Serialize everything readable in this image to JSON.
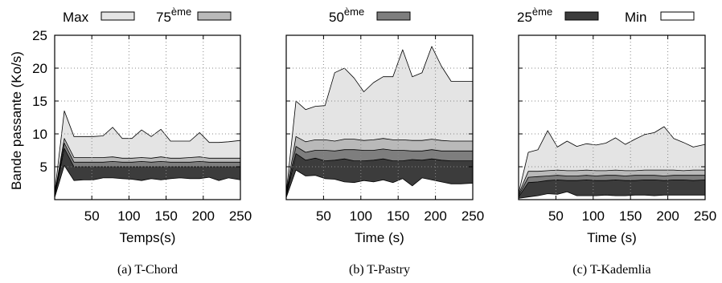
{
  "legend": {
    "items": [
      {
        "label": "Max",
        "sup": "",
        "fill": "#e4e4e4"
      },
      {
        "label": "75",
        "sup": "ème",
        "fill": "#b9b9b9"
      },
      {
        "label": "50",
        "sup": "ème",
        "fill": "#7e7e7e"
      },
      {
        "label": "25",
        "sup": "ème",
        "fill": "#3c3c3c"
      },
      {
        "label": "Min",
        "sup": "",
        "fill": "#ffffff"
      }
    ]
  },
  "colors": {
    "max_fill": "#e4e4e4",
    "p75_fill": "#b9b9b9",
    "p50_fill": "#7e7e7e",
    "p25_fill": "#3c3c3c",
    "min_fill": "#ffffff",
    "axis": "#000000",
    "grid": "#888888"
  },
  "chart_data": [
    {
      "type": "area",
      "caption": "(a) T-Chord",
      "xlabel": "Temps(s)",
      "ylabel": "Bande passante (Ko/s)",
      "xlim": [
        0,
        250
      ],
      "ylim": [
        0,
        25
      ],
      "xticks": [
        50,
        100,
        150,
        200,
        250
      ],
      "yticks": [
        5,
        10,
        15,
        20,
        25
      ],
      "grid": true,
      "x": [
        0,
        13,
        26,
        39,
        52,
        65,
        78,
        91,
        104,
        117,
        130,
        143,
        156,
        169,
        182,
        195,
        208,
        221,
        234,
        250
      ],
      "series": [
        {
          "name": "Max",
          "values": [
            1,
            13.5,
            9.6,
            9.6,
            9.6,
            9.7,
            11.0,
            9.3,
            9.3,
            10.6,
            9.6,
            10.7,
            8.9,
            8.9,
            8.9,
            10.2,
            8.7,
            8.7,
            8.8,
            9.0
          ]
        },
        {
          "name": "75ème",
          "values": [
            0.8,
            9.3,
            6.4,
            6.4,
            6.4,
            6.4,
            6.5,
            6.3,
            6.3,
            6.4,
            6.3,
            6.5,
            6.3,
            6.3,
            6.4,
            6.5,
            6.3,
            6.3,
            6.3,
            6.3
          ]
        },
        {
          "name": "50ème",
          "values": [
            0.6,
            8.6,
            5.7,
            5.7,
            5.7,
            5.7,
            5.8,
            5.7,
            5.7,
            5.8,
            5.7,
            5.8,
            5.7,
            5.7,
            5.7,
            5.8,
            5.7,
            5.7,
            5.7,
            5.7
          ]
        },
        {
          "name": "25ème",
          "values": [
            0.5,
            7.8,
            5.0,
            5.0,
            5.0,
            5.0,
            5.0,
            5.0,
            5.0,
            5.0,
            5.0,
            5.0,
            5.0,
            5.0,
            5.0,
            5.0,
            5.0,
            5.0,
            5.0,
            5.0
          ]
        },
        {
          "name": "Min",
          "values": [
            0.3,
            5.2,
            2.9,
            3.0,
            3.0,
            3.3,
            3.3,
            3.2,
            3.1,
            2.9,
            3.2,
            3.0,
            3.2,
            3.3,
            3.2,
            3.2,
            3.4,
            2.9,
            3.3,
            3.0
          ]
        }
      ]
    },
    {
      "type": "area",
      "caption": "(b) T-Pastry",
      "xlabel": "Time (s)",
      "ylabel": "",
      "xlim": [
        0,
        250
      ],
      "ylim": [
        0,
        25
      ],
      "xticks": [
        50,
        100,
        150,
        200,
        250
      ],
      "yticks": [
        5,
        10,
        15,
        20,
        25
      ],
      "grid": true,
      "x": [
        0,
        13,
        26,
        39,
        52,
        65,
        78,
        91,
        104,
        117,
        130,
        143,
        156,
        169,
        182,
        195,
        208,
        221,
        234,
        250
      ],
      "series": [
        {
          "name": "Max",
          "values": [
            1,
            15.0,
            13.7,
            14.2,
            14.3,
            19.3,
            20.0,
            18.5,
            16.4,
            17.8,
            18.7,
            18.7,
            22.8,
            18.7,
            19.3,
            23.3,
            20.3,
            18.0,
            18.0,
            18.0
          ]
        },
        {
          "name": "75ème",
          "values": [
            0.9,
            9.6,
            8.8,
            9.1,
            9.1,
            8.9,
            9.2,
            9.2,
            9.0,
            9.1,
            9.3,
            9.1,
            9.1,
            9.0,
            9.0,
            9.2,
            9.0,
            8.9,
            8.9,
            8.9
          ]
        },
        {
          "name": "50ème",
          "values": [
            0.7,
            8.1,
            7.2,
            7.5,
            7.5,
            7.4,
            7.6,
            7.6,
            7.5,
            7.5,
            7.7,
            7.5,
            7.5,
            7.4,
            7.4,
            7.6,
            7.4,
            7.4,
            7.4,
            7.4
          ]
        },
        {
          "name": "25ème",
          "values": [
            0.5,
            7.0,
            6.0,
            6.3,
            5.9,
            6.0,
            6.2,
            5.9,
            5.9,
            6.0,
            6.2,
            5.9,
            5.9,
            6.1,
            6.0,
            6.2,
            6.0,
            5.9,
            5.9,
            5.9
          ]
        },
        {
          "name": "Min",
          "values": [
            0.3,
            4.5,
            3.6,
            3.7,
            3.2,
            3.1,
            2.7,
            2.6,
            2.9,
            2.7,
            3.0,
            2.6,
            3.2,
            2.1,
            3.3,
            3.0,
            2.7,
            2.4,
            2.4,
            2.5
          ]
        }
      ]
    },
    {
      "type": "area",
      "caption": "(c) T-Kademlia",
      "xlabel": "Time (s)",
      "ylabel": "",
      "xlim": [
        0,
        250
      ],
      "ylim": [
        0,
        25
      ],
      "xticks": [
        50,
        100,
        150,
        200,
        250
      ],
      "yticks": [
        5,
        10,
        15,
        20,
        25
      ],
      "grid": true,
      "x": [
        0,
        13,
        26,
        39,
        52,
        65,
        78,
        91,
        104,
        117,
        130,
        143,
        156,
        169,
        182,
        195,
        208,
        221,
        234,
        250
      ],
      "series": [
        {
          "name": "Max",
          "values": [
            1,
            7.2,
            7.6,
            10.5,
            8.0,
            8.9,
            8.1,
            8.5,
            8.3,
            8.6,
            9.4,
            8.4,
            9.2,
            9.9,
            10.2,
            11.1,
            9.3,
            8.7,
            8.0,
            8.4
          ]
        },
        {
          "name": "75ème",
          "values": [
            0.8,
            4.3,
            4.3,
            4.4,
            4.5,
            4.4,
            4.4,
            4.5,
            4.4,
            4.4,
            4.5,
            4.4,
            4.4,
            4.5,
            4.5,
            4.5,
            4.5,
            4.4,
            4.5,
            4.5
          ]
        },
        {
          "name": "50ème",
          "values": [
            0.6,
            3.4,
            3.5,
            3.6,
            3.7,
            3.6,
            3.6,
            3.7,
            3.6,
            3.7,
            3.7,
            3.6,
            3.7,
            3.7,
            3.7,
            3.6,
            3.7,
            3.7,
            3.7,
            3.7
          ]
        },
        {
          "name": "25ème",
          "values": [
            0.4,
            2.6,
            2.7,
            2.9,
            3.0,
            2.9,
            2.9,
            3.0,
            2.9,
            2.9,
            3.0,
            2.9,
            2.9,
            3.0,
            3.0,
            2.9,
            3.0,
            3.0,
            2.9,
            3.0
          ]
        },
        {
          "name": "Min",
          "values": [
            0.2,
            0.4,
            0.6,
            0.9,
            0.8,
            1.2,
            0.6,
            0.6,
            0.6,
            0.7,
            0.6,
            0.6,
            0.7,
            0.7,
            0.6,
            0.7,
            0.7,
            0.7,
            0.7,
            0.7
          ]
        }
      ]
    }
  ]
}
